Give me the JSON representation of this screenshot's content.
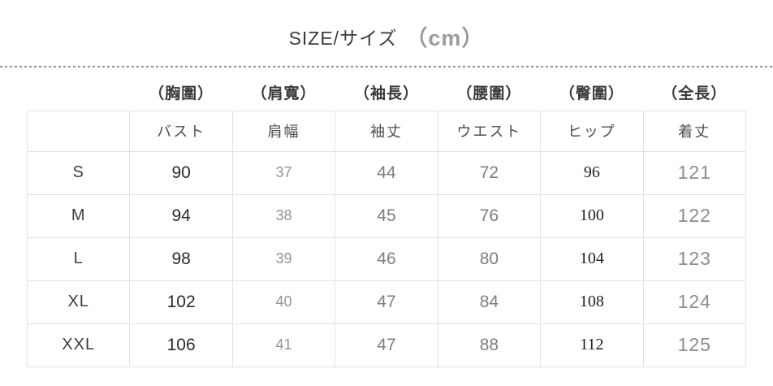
{
  "title": {
    "text": "SIZE/サイズ",
    "unit": "（cm）"
  },
  "table": {
    "top_headers": [
      "（胸圍）",
      "（肩寬）",
      "（袖長）",
      "（腰圍）",
      "（臀圍）",
      "（全長）"
    ],
    "sub_headers": [
      "バスト",
      "肩幅",
      "袖丈",
      "ウエスト",
      "ヒップ",
      "着丈"
    ],
    "rows": [
      {
        "size": "S",
        "values": [
          "90",
          "37",
          "44",
          "72",
          "96",
          "121"
        ]
      },
      {
        "size": "M",
        "values": [
          "94",
          "38",
          "45",
          "76",
          "100",
          "122"
        ]
      },
      {
        "size": "L",
        "values": [
          "98",
          "39",
          "46",
          "80",
          "104",
          "123"
        ]
      },
      {
        "size": "XL",
        "values": [
          "102",
          "40",
          "47",
          "84",
          "108",
          "124"
        ]
      },
      {
        "size": "XXL",
        "values": [
          "106",
          "41",
          "47",
          "88",
          "112",
          "125"
        ]
      }
    ]
  },
  "colors": {
    "background": "#ffffff",
    "title_text": "#3c3c3c",
    "unit_gray": "#9b9b9b",
    "header_dark": "#3a3a3a",
    "value_dark": "#2c2c2c",
    "value_muted": "#7e7e7e",
    "table_border": "#e2e2e2",
    "divider_gray": "#8f8f8f"
  }
}
